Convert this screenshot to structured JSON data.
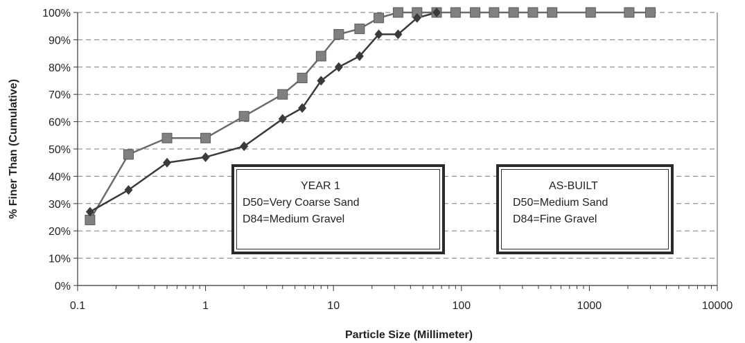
{
  "chart_data": {
    "type": "line",
    "x_scale": "log",
    "xlim": [
      0.1,
      10000
    ],
    "ylim": [
      0,
      1
    ],
    "xlabel": "Particle Size (Millimeter)",
    "ylabel": "% Finer Than (Cumulative)",
    "x_ticks": [
      {
        "value": 0.1,
        "label": "0.1"
      },
      {
        "value": 1,
        "label": "1"
      },
      {
        "value": 10,
        "label": "10"
      },
      {
        "value": 100,
        "label": "100"
      },
      {
        "value": 1000,
        "label": "1000"
      },
      {
        "value": 10000,
        "label": "10000"
      }
    ],
    "y_ticks": [
      {
        "value": 0,
        "label": "0%"
      },
      {
        "value": 0.1,
        "label": "10%"
      },
      {
        "value": 0.2,
        "label": "20%"
      },
      {
        "value": 0.3,
        "label": "30%"
      },
      {
        "value": 0.4,
        "label": "40%"
      },
      {
        "value": 0.5,
        "label": "50%"
      },
      {
        "value": 0.6,
        "label": "60%"
      },
      {
        "value": 0.7,
        "label": "70%"
      },
      {
        "value": 0.8,
        "label": "80%"
      },
      {
        "value": 0.9,
        "label": "90%"
      },
      {
        "value": 1.0,
        "label": "100%"
      }
    ],
    "grid": "horizontal dashed",
    "series": [
      {
        "marker": "square",
        "color": "#6b6b6b",
        "points": [
          [
            0.125,
            0.24
          ],
          [
            0.25,
            0.48
          ],
          [
            0.5,
            0.54
          ],
          [
            1,
            0.54
          ],
          [
            2,
            0.62
          ],
          [
            4,
            0.7
          ],
          [
            5.7,
            0.76
          ],
          [
            8,
            0.84
          ],
          [
            11,
            0.92
          ],
          [
            16,
            0.94
          ],
          [
            22.6,
            0.98
          ],
          [
            32,
            1.0
          ],
          [
            45,
            1.0
          ],
          [
            64,
            1.0
          ],
          [
            90,
            1.0
          ],
          [
            128,
            1.0
          ],
          [
            180,
            1.0
          ],
          [
            256,
            1.0
          ],
          [
            362,
            1.0
          ],
          [
            512,
            1.0
          ],
          [
            1024,
            1.0
          ],
          [
            2048,
            1.0
          ],
          [
            3000,
            1.0
          ]
        ]
      },
      {
        "marker": "diamond",
        "color": "#3a3a3a",
        "points": [
          [
            0.125,
            0.27
          ],
          [
            0.25,
            0.35
          ],
          [
            0.5,
            0.45
          ],
          [
            1,
            0.47
          ],
          [
            2,
            0.51
          ],
          [
            4,
            0.61
          ],
          [
            5.7,
            0.65
          ],
          [
            8,
            0.75
          ],
          [
            11,
            0.8
          ],
          [
            16,
            0.84
          ],
          [
            22.6,
            0.92
          ],
          [
            32,
            0.92
          ],
          [
            45,
            0.98
          ],
          [
            64,
            1.0
          ]
        ]
      }
    ]
  },
  "notes": {
    "year1": {
      "title": "YEAR 1",
      "d50": "D50=Very Coarse Sand",
      "d84": "D84=Medium Gravel"
    },
    "asbuilt": {
      "title": "AS-BUILT",
      "d50": "D50=Medium Sand",
      "d84": "D84=Fine Gravel"
    }
  }
}
